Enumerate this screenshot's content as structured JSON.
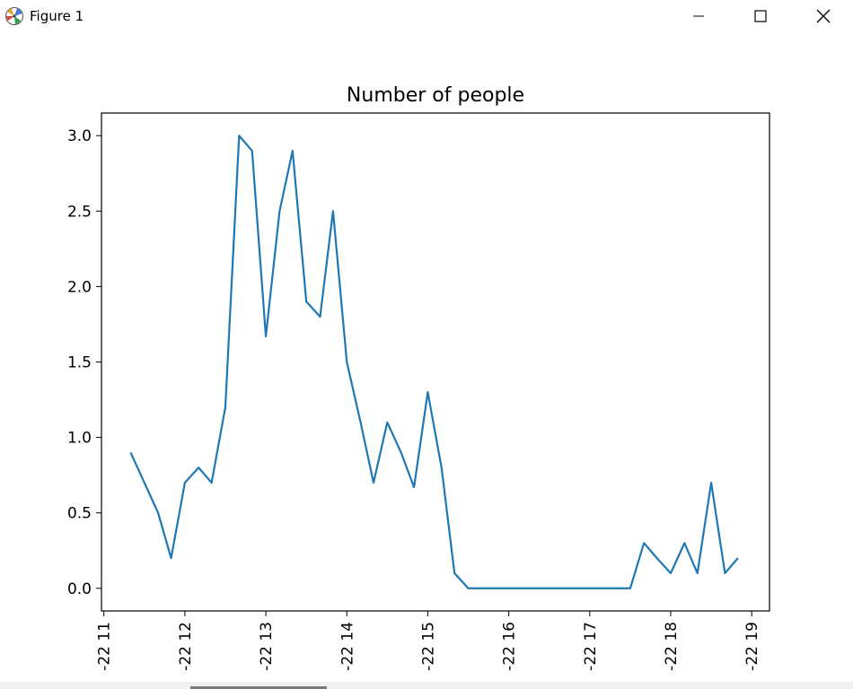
{
  "window": {
    "title": "Figure 1",
    "app_icon": "matplotlib-icon",
    "controls": [
      "minimize-icon",
      "maximize-icon",
      "close-icon"
    ]
  },
  "colors": {
    "line": "#1f77b4",
    "axes": "#000000",
    "background": "#ffffff"
  },
  "chart_data": {
    "type": "line",
    "title": "Number of people",
    "xlabel": "",
    "ylabel": "",
    "x_tick_values": [
      "11",
      "12",
      "13",
      "14",
      "15",
      "16",
      "17",
      "18",
      "19"
    ],
    "x_tick_labels": [
      "-22 11",
      "-22 12",
      "-22 13",
      "-22 14",
      "-22 15",
      "-22 16",
      "-22 17",
      "-22 18",
      "-22 19"
    ],
    "x_tick_rotation": "vertical",
    "y_ticks": [
      "0.0",
      "0.5",
      "1.0",
      "1.5",
      "2.0",
      "2.5",
      "3.0"
    ],
    "xlim": [
      "10.97",
      "19.22"
    ],
    "ylim": [
      -0.15,
      3.15
    ],
    "grid": false,
    "legend": "none",
    "series": [
      {
        "x": [
          "11.33",
          "11.50",
          "11.67",
          "11.83",
          "12.00",
          "12.17",
          "12.33",
          "12.50",
          "12.67",
          "12.83",
          "13.00",
          "13.17",
          "13.33",
          "13.50",
          "13.67",
          "13.83",
          "14.00",
          "14.17",
          "14.33",
          "14.50",
          "14.67",
          "14.83",
          "15.00",
          "15.17",
          "15.33",
          "15.50",
          "15.67",
          "15.83",
          "16.00",
          "16.17",
          "16.33",
          "16.50",
          "16.67",
          "16.83",
          "17.00",
          "17.17",
          "17.33",
          "17.50",
          "17.67",
          "17.83",
          "18.00",
          "18.17",
          "18.33",
          "18.50",
          "18.67",
          "18.83"
        ],
        "y": [
          0.9,
          0.7,
          0.5,
          0.2,
          0.7,
          0.8,
          0.7,
          1.2,
          3.0,
          2.9,
          1.67,
          2.5,
          2.9,
          1.9,
          1.8,
          2.5,
          1.5,
          1.1,
          0.7,
          1.1,
          0.9,
          0.67,
          1.3,
          0.8,
          0.1,
          0.0,
          0.0,
          0.0,
          0.0,
          0.0,
          0.0,
          0.0,
          0.0,
          0.0,
          0.0,
          0.0,
          0.0,
          0.0,
          0.3,
          0.2,
          0.1,
          0.3,
          0.1,
          0.7,
          0.1,
          0.2
        ]
      }
    ]
  }
}
